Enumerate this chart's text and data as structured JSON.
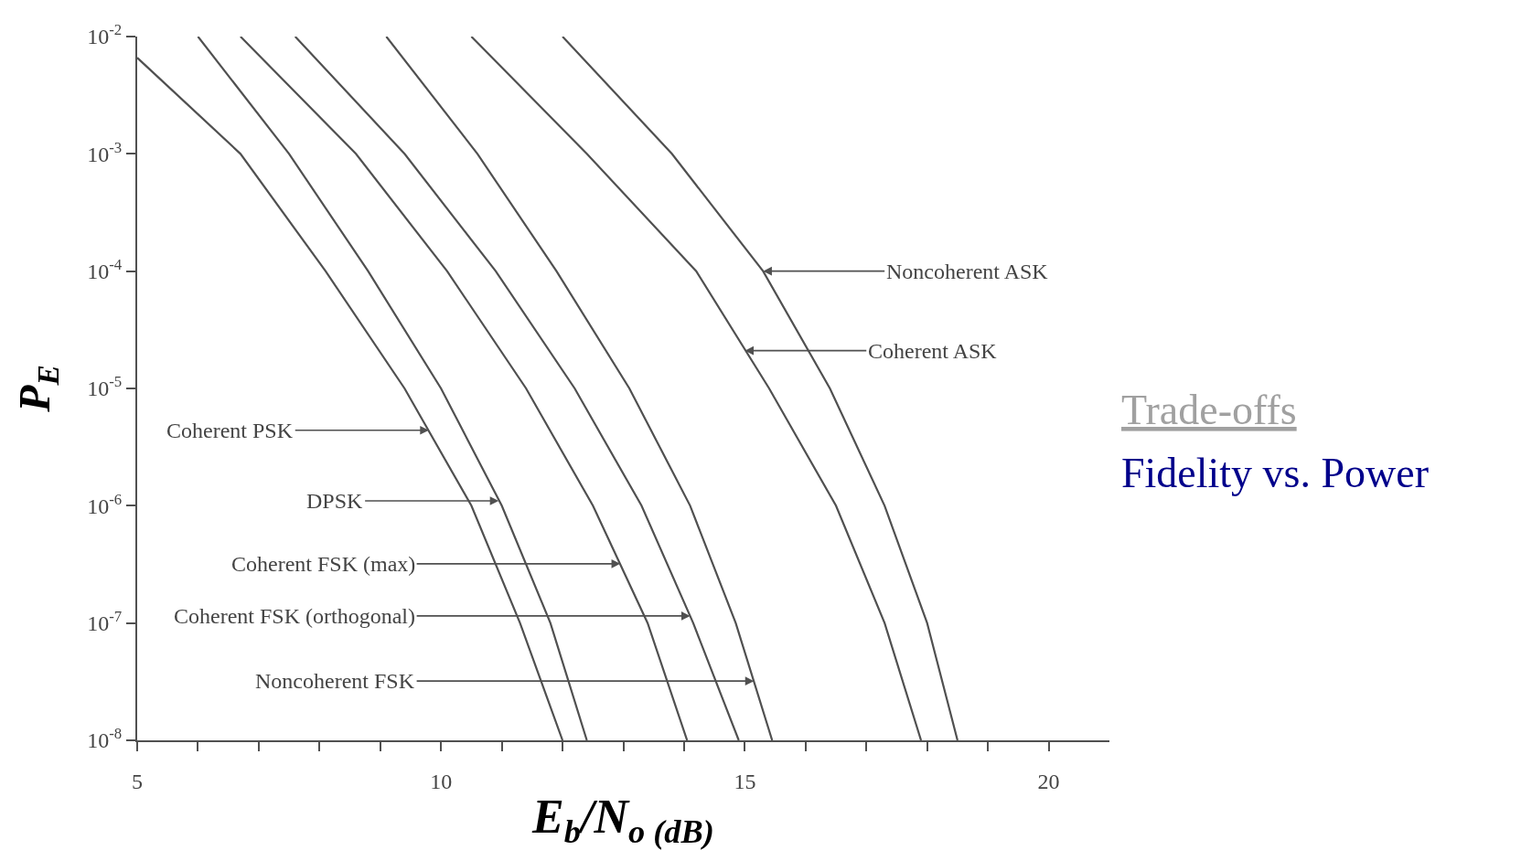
{
  "chart_data": {
    "type": "line",
    "xlabel": "E$_{b}$/N$_{o (dB)}$",
    "ylabel": "P$_{E}$",
    "log": "y",
    "marker": "none",
    "line_style": "solid",
    "xlim": [
      5,
      21
    ],
    "ylim": [
      1e-08,
      0.01
    ],
    "xticks": [
      5,
      {
        "value": 6,
        "label": null
      },
      {
        "value": 7,
        "label": null
      },
      {
        "value": 8,
        "label": null
      },
      {
        "value": 9,
        "label": null
      },
      10,
      {
        "value": 11,
        "label": null
      },
      {
        "value": 12,
        "label": null
      },
      {
        "value": 13,
        "label": null
      },
      {
        "value": 14,
        "label": null
      },
      15,
      {
        "value": 16,
        "label": null
      },
      {
        "value": 17,
        "label": null
      },
      {
        "value": 18,
        "label": null
      },
      {
        "value": 19,
        "label": null
      },
      20
    ],
    "yticks": [
      {
        "value": 1e-08,
        "label": "10$^{-8}$"
      },
      {
        "value": 1e-07,
        "label": "10$^{-7}$"
      },
      {
        "value": 1e-06,
        "label": "10$^{-6}$"
      },
      {
        "value": 1e-05,
        "label": "10$^{-5}$"
      },
      {
        "value": 0.0001,
        "label": "10$^{-4}$"
      },
      {
        "value": 0.001,
        "label": "10$^{-3}$"
      },
      {
        "value": 0.01,
        "label": "10$^{-2}$"
      }
    ],
    "series": [
      {
        "color": "#505050",
        "x": [
          5,
          6.7,
          8.1,
          9.4,
          10.5,
          11.3,
          12.0
        ],
        "values": [
          0.0066,
          0.001,
          0.0001,
          1e-05,
          1e-06,
          1e-07,
          1e-08
        ]
      },
      {
        "color": "#505050",
        "x": [
          6.0,
          7.5,
          8.8,
          10.0,
          11.0,
          11.8,
          12.4
        ],
        "values": [
          0.01,
          0.001,
          0.0001,
          1e-05,
          1e-06,
          1e-07,
          1e-08
        ]
      },
      {
        "color": "#505050",
        "x": [
          6.7,
          8.6,
          10.1,
          11.4,
          12.5,
          13.4,
          14.05
        ],
        "values": [
          0.01,
          0.001,
          0.0001,
          1e-05,
          1e-06,
          1e-07,
          1e-08
        ]
      },
      {
        "color": "#505050",
        "x": [
          7.6,
          9.4,
          10.9,
          12.2,
          13.3,
          14.15,
          14.9
        ],
        "values": [
          0.01,
          0.001,
          0.0001,
          1e-05,
          1e-06,
          1e-07,
          1e-08
        ]
      },
      {
        "color": "#505050",
        "x": [
          9.1,
          10.6,
          11.9,
          13.1,
          14.1,
          14.85,
          15.45
        ],
        "values": [
          0.01,
          0.001,
          0.0001,
          1e-05,
          1e-06,
          1e-07,
          1e-08
        ]
      },
      {
        "color": "#505050",
        "x": [
          10.5,
          12.4,
          14.2,
          15.4,
          16.5,
          17.3,
          17.9
        ],
        "values": [
          0.01,
          0.001,
          0.0001,
          1e-05,
          1e-06,
          1e-07,
          1e-08
        ]
      },
      {
        "color": "#505050",
        "x": [
          12.0,
          13.8,
          15.3,
          16.4,
          17.3,
          18.0,
          18.5
        ],
        "values": [
          0.01,
          0.001,
          0.0001,
          1e-05,
          1e-06,
          1e-07,
          1e-08
        ]
      }
    ],
    "annotations": [
      {
        "text": "Coherent PSK",
        "x": 9.8,
        "y": 4.4e-06
      },
      {
        "text": "DPSK",
        "x": 10.95,
        "y": 1.1e-06
      },
      {
        "text": "Coherent FSK (max)",
        "x": 12.95,
        "y": 3.2e-07
      },
      {
        "text": "Coherent FSK (orthogonal)",
        "x": 14.1,
        "y": 1.15e-07
      },
      {
        "text": "Noncoherent FSK",
        "x": 15.15,
        "y": 3.2e-08
      },
      {
        "text": "Coherent ASK",
        "x": 15.0,
        "y": 2.1e-05
      },
      {
        "text": "Noncoherent ASK",
        "x": 15.3,
        "y": 0.0001
      },
      "Trade-offs",
      "Fidelity vs. Power"
    ]
  }
}
